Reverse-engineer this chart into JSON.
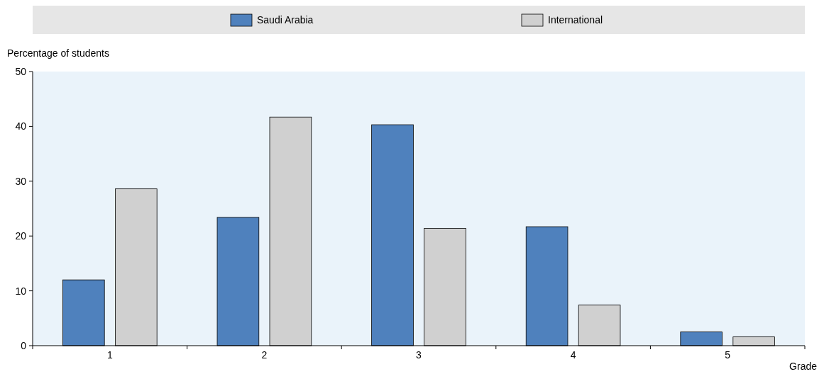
{
  "chart_data": {
    "type": "bar",
    "categories": [
      "1",
      "2",
      "3",
      "4",
      "5"
    ],
    "xlabel": "Grade",
    "ylabel": "Percentage of students",
    "ylim": [
      0,
      50
    ],
    "yticks": [
      0,
      10,
      20,
      30,
      40,
      50
    ],
    "legend": "top",
    "series": [
      {
        "name": "Saudi Arabia",
        "color": "#4f81bd",
        "values": [
          12.0,
          23.4,
          40.3,
          21.7,
          2.5
        ]
      },
      {
        "name": "International",
        "color": "#d0d0d0",
        "values": [
          28.6,
          41.7,
          21.4,
          7.4,
          1.6
        ]
      }
    ]
  }
}
